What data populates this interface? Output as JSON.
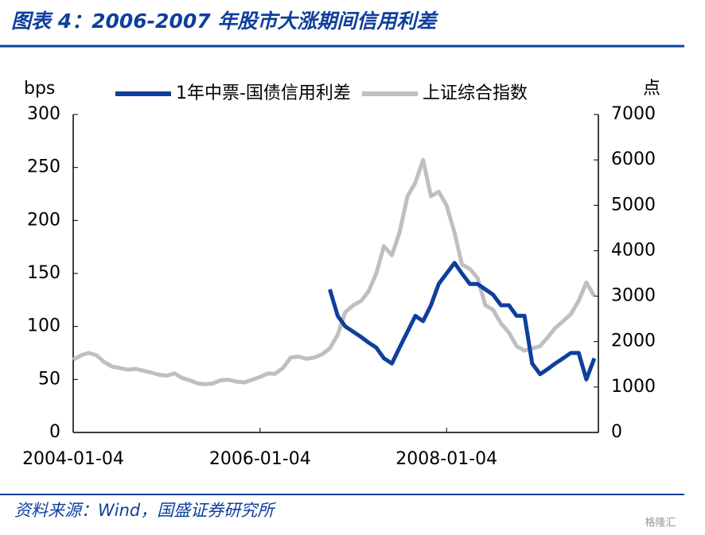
{
  "chart_data": {
    "type": "line",
    "title": "图表 4：2006-2007 年股市大涨期间信用利差",
    "y_label": "bps",
    "y2_label": "点",
    "source": "资料来源：Wind，国盛证券研究所",
    "watermark": "格隆汇",
    "xlim": [
      "2004-01-04",
      "2009-08-20"
    ],
    "xticks": [
      "2004-01-04",
      "2006-01-04",
      "2008-01-04"
    ],
    "ylim": [
      0,
      300
    ],
    "yticks": [
      0,
      50,
      100,
      150,
      200,
      250,
      300
    ],
    "y2lim": [
      0,
      7000
    ],
    "y2ticks": [
      0,
      1000,
      2000,
      3000,
      4000,
      5000,
      6000,
      7000
    ],
    "legend": "top",
    "x": [
      "2004-01-04",
      "2004-02-04",
      "2004-03-04",
      "2004-04-04",
      "2004-05-04",
      "2004-06-04",
      "2004-07-04",
      "2004-08-04",
      "2004-09-04",
      "2004-10-04",
      "2004-11-04",
      "2004-12-04",
      "2005-01-04",
      "2005-02-04",
      "2005-03-04",
      "2005-04-04",
      "2005-05-04",
      "2005-06-04",
      "2005-07-04",
      "2005-08-04",
      "2005-09-04",
      "2005-10-04",
      "2005-11-04",
      "2005-12-04",
      "2006-01-04",
      "2006-02-04",
      "2006-03-04",
      "2006-04-04",
      "2006-05-04",
      "2006-06-04",
      "2006-07-04",
      "2006-08-04",
      "2006-09-04",
      "2006-10-04",
      "2006-11-04",
      "2006-12-04",
      "2007-01-04",
      "2007-02-04",
      "2007-03-04",
      "2007-04-04",
      "2007-05-04",
      "2007-06-04",
      "2007-07-04",
      "2007-08-04",
      "2007-09-04",
      "2007-10-04",
      "2007-11-04",
      "2007-12-04",
      "2008-01-04",
      "2008-02-04",
      "2008-03-04",
      "2008-04-04",
      "2008-05-04",
      "2008-06-04",
      "2008-07-04",
      "2008-08-04",
      "2008-09-04",
      "2008-10-04",
      "2008-11-04",
      "2008-12-04",
      "2009-01-04",
      "2009-02-04",
      "2009-03-04",
      "2009-04-04",
      "2009-05-04",
      "2009-06-04",
      "2009-07-04",
      "2009-08-04"
    ],
    "series": [
      {
        "name": "上证综合指数",
        "color": "#bfbfbf",
        "axis": "y2",
        "values": [
          1600,
          1700,
          1750,
          1700,
          1550,
          1450,
          1420,
          1380,
          1400,
          1360,
          1320,
          1270,
          1250,
          1300,
          1200,
          1150,
          1080,
          1060,
          1080,
          1150,
          1160,
          1120,
          1100,
          1160,
          1220,
          1300,
          1290,
          1420,
          1650,
          1670,
          1620,
          1650,
          1720,
          1850,
          2150,
          2650,
          2800,
          2900,
          3100,
          3500,
          4100,
          3900,
          4400,
          5200,
          5500,
          6000,
          5200,
          5300,
          5000,
          4400,
          3700,
          3600,
          3400,
          2800,
          2700,
          2400,
          2200,
          1900,
          1800,
          1850,
          1900,
          2100,
          2300,
          2450,
          2600,
          2900,
          3300,
          3000
        ]
      },
      {
        "name": "1年中票-国债信用利差",
        "color": "#0e3f9c",
        "values": [
          null,
          null,
          null,
          null,
          null,
          null,
          null,
          null,
          null,
          null,
          null,
          null,
          null,
          null,
          null,
          null,
          null,
          null,
          null,
          null,
          null,
          null,
          null,
          null,
          null,
          null,
          null,
          null,
          null,
          null,
          null,
          null,
          null,
          135,
          110,
          100,
          95,
          90,
          85,
          80,
          70,
          65,
          80,
          95,
          110,
          105,
          120,
          140,
          150,
          160,
          150,
          140,
          140,
          135,
          130,
          120,
          120,
          110,
          110,
          65,
          55,
          60,
          65,
          70,
          75,
          75,
          50,
          70
        ]
      }
    ]
  }
}
